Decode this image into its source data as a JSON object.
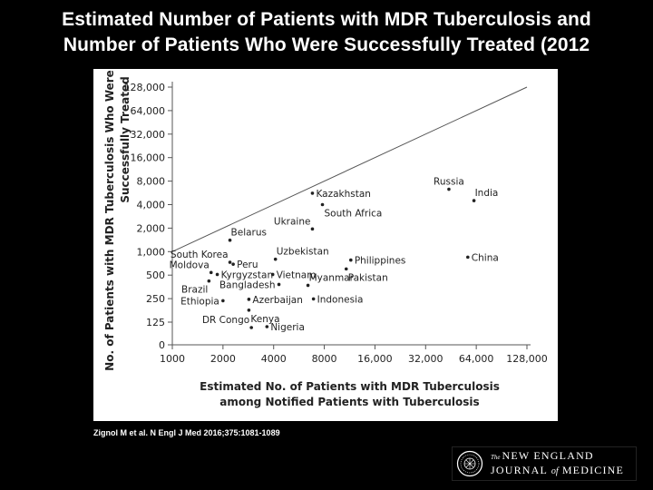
{
  "slide": {
    "title_line1": "Estimated Number of Patients with MDR Tuberculosis and",
    "title_line2": "Number of Patients Who Were Successfully Treated (2012",
    "citation": "Zignol M et al. N Engl J Med 2016;375:1081-1089",
    "background_color": "#000000",
    "title_color": "#ffffff"
  },
  "logo": {
    "line1_small": "The",
    "line1_main": "NEW ENGLAND",
    "line2_a": "JOURNAL",
    "line2_of": "of",
    "line2_b": "MEDICINE",
    "icon": "seal-icon"
  },
  "chart_data": {
    "type": "scatter",
    "xlabel_line1": "Estimated No. of Patients with MDR Tuberculosis",
    "xlabel_line2": "among Notified Patients with Tuberculosis",
    "ylabel_line1": "No. of Patients with MDR Tuberculosis Who Were",
    "ylabel_line2": "Successfully Treated",
    "x_scale": "log2",
    "y_scale": "log2 (with 0 at baseline)",
    "xlim": [
      1000,
      128000
    ],
    "ylim": [
      0,
      128000
    ],
    "x_ticks": [
      1000,
      2000,
      4000,
      8000,
      16000,
      32000,
      64000,
      128000
    ],
    "x_tick_labels": [
      "1000",
      "2000",
      "4000",
      "8000",
      "16,000",
      "32,000",
      "64,000",
      "128,000"
    ],
    "y_ticks": [
      0,
      125,
      250,
      500,
      1000,
      2000,
      4000,
      8000,
      16000,
      32000,
      64000,
      128000
    ],
    "y_tick_labels": [
      "0",
      "125",
      "250",
      "500",
      "1,000",
      "2,000",
      "4,000",
      "8,000",
      "16,000",
      "32,000",
      "64,000",
      "128,000"
    ],
    "reference_line": {
      "from": [
        1000,
        1000
      ],
      "to": [
        128000,
        128000
      ]
    },
    "points": [
      {
        "label": "Russia",
        "x": 44000,
        "y": 6300,
        "label_pos": "above"
      },
      {
        "label": "India",
        "x": 62000,
        "y": 4500,
        "label_pos": "above-right"
      },
      {
        "label": "China",
        "x": 57000,
        "y": 850,
        "label_pos": "right"
      },
      {
        "label": "Kazakhstan",
        "x": 6800,
        "y": 5600,
        "label_pos": "right"
      },
      {
        "label": "South Africa",
        "x": 7800,
        "y": 4000,
        "label_pos": "below-right"
      },
      {
        "label": "Ukraine",
        "x": 6800,
        "y": 1950,
        "label_pos": "above-left"
      },
      {
        "label": "Belarus",
        "x": 2200,
        "y": 1400,
        "label_pos": "above-right"
      },
      {
        "label": "Uzbekistan",
        "x": 4100,
        "y": 800,
        "label_pos": "above-right"
      },
      {
        "label": "Philippines",
        "x": 11500,
        "y": 780,
        "label_pos": "right"
      },
      {
        "label": "Pakistan",
        "x": 10800,
        "y": 600,
        "label_pos": "below-right"
      },
      {
        "label": "South Korea",
        "x": 2200,
        "y": 730,
        "label_pos": "above-left"
      },
      {
        "label": "Peru",
        "x": 2300,
        "y": 690,
        "label_pos": "right"
      },
      {
        "label": "Moldova",
        "x": 1700,
        "y": 540,
        "label_pos": "above-left"
      },
      {
        "label": "Kyrgyzstan",
        "x": 1850,
        "y": 510,
        "label_pos": "right"
      },
      {
        "label": "Vietnam",
        "x": 3950,
        "y": 510,
        "label_pos": "right"
      },
      {
        "label": "Brazil",
        "x": 1650,
        "y": 420,
        "label_pos": "below-left"
      },
      {
        "label": "Bangladesh",
        "x": 4300,
        "y": 380,
        "label_pos": "left"
      },
      {
        "label": "Myanmar",
        "x": 6400,
        "y": 370,
        "label_pos": "above-right"
      },
      {
        "label": "Ethiopia",
        "x": 2000,
        "y": 235,
        "label_pos": "left"
      },
      {
        "label": "Azerbaijan",
        "x": 2850,
        "y": 245,
        "label_pos": "right"
      },
      {
        "label": "Indonesia",
        "x": 6900,
        "y": 248,
        "label_pos": "right"
      },
      {
        "label": "Kenya",
        "x": 2850,
        "y": 178,
        "label_pos": "below-right"
      },
      {
        "label": "DR Congo",
        "x": 2950,
        "y": 95,
        "label_pos": "above-left"
      },
      {
        "label": "Nigeria",
        "x": 3650,
        "y": 100,
        "label_pos": "right"
      }
    ]
  }
}
